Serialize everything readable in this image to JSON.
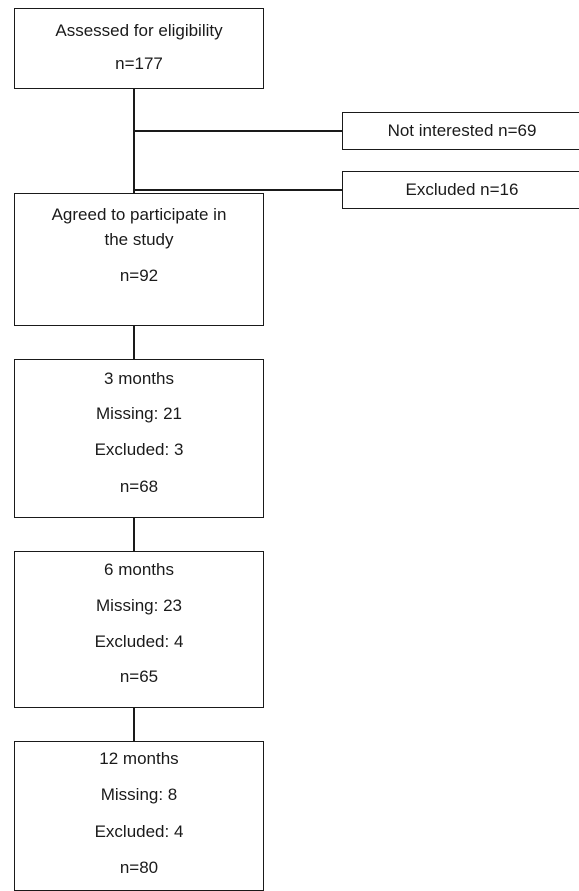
{
  "flowchart": {
    "assessed": {
      "title": "Assessed for eligibility",
      "n": "n=177"
    },
    "not_interested": {
      "label": "Not interested n=69"
    },
    "excluded_initial": {
      "label": "Excluded n=16"
    },
    "agreed": {
      "title_line1": "Agreed to participate in",
      "title_line2": "the study",
      "n": "n=92"
    },
    "followups": [
      {
        "period": "3 months",
        "missing": "Missing: 21",
        "excluded": "Excluded: 3",
        "n": "n=68"
      },
      {
        "period": "6 months",
        "missing": "Missing: 23",
        "excluded": "Excluded: 4",
        "n": "n=65"
      },
      {
        "period": "12 months",
        "missing": "Missing: 8",
        "excluded": "Excluded: 4",
        "n": "n=80"
      }
    ]
  }
}
